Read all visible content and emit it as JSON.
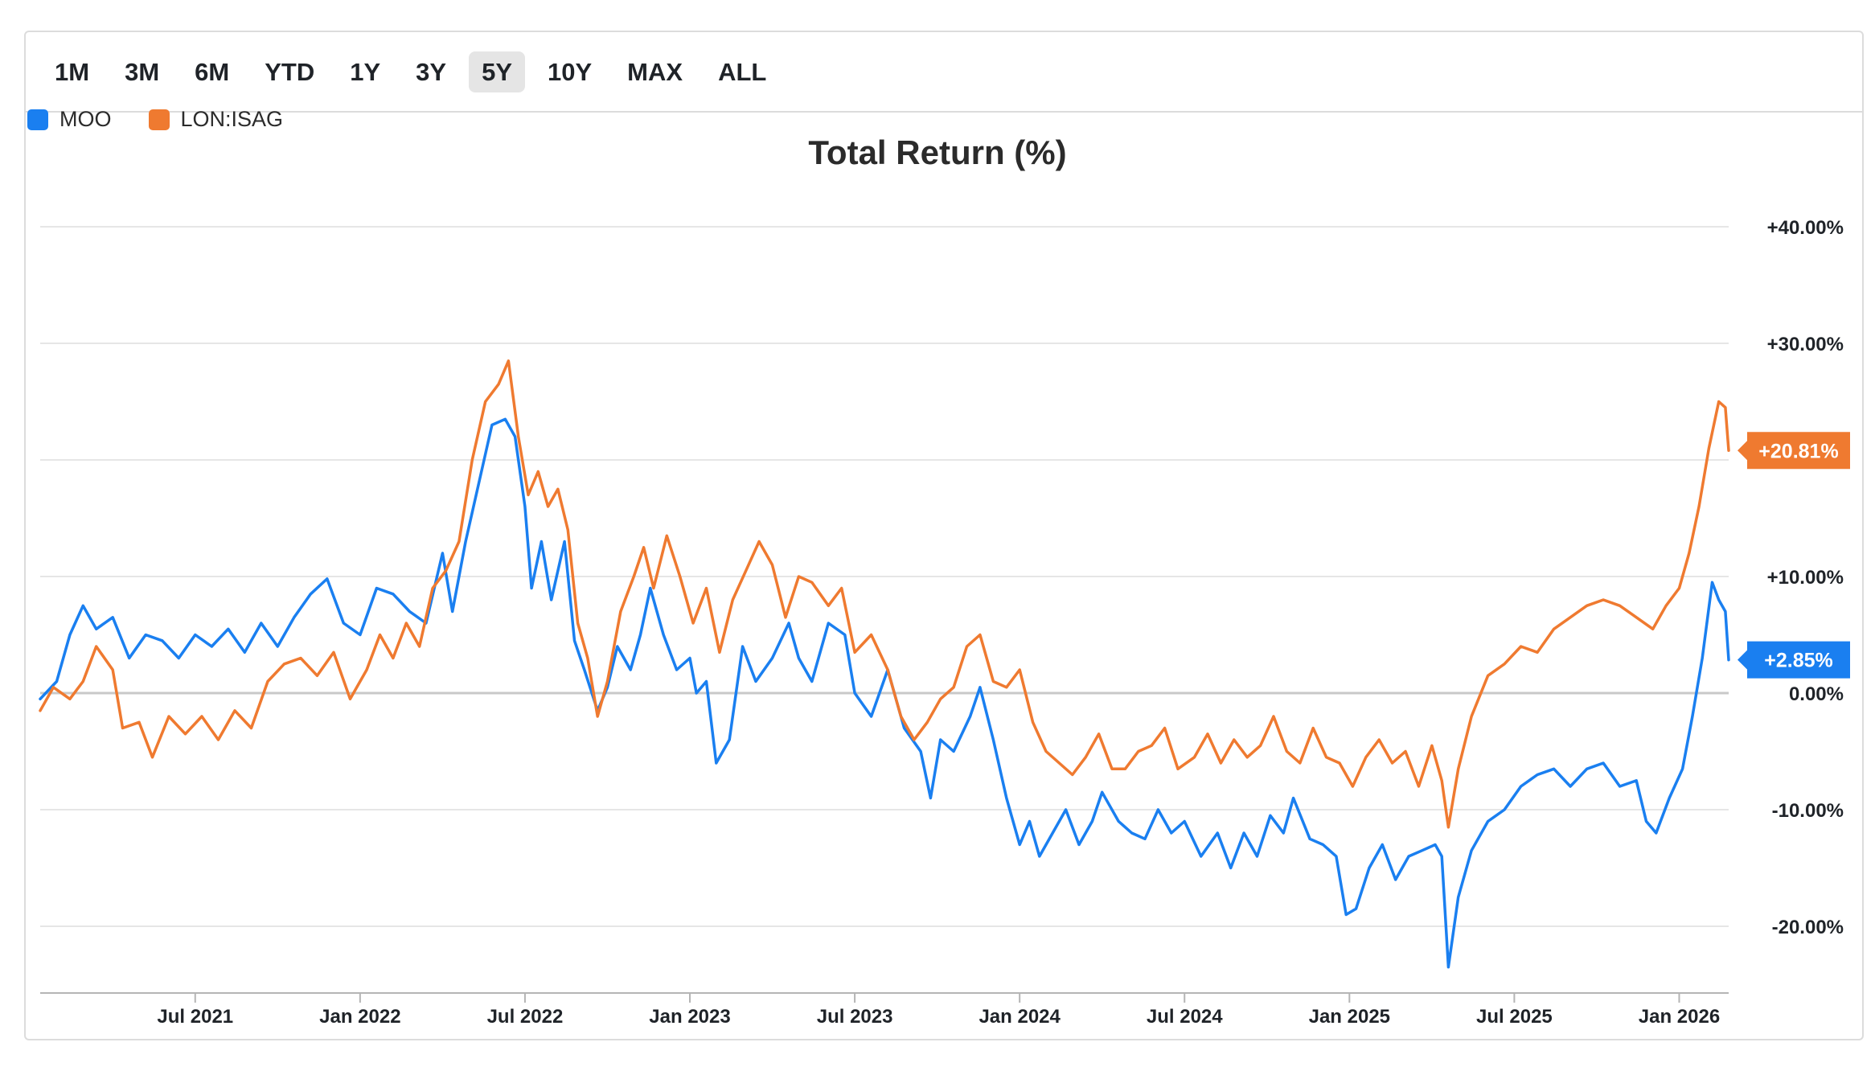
{
  "toolbar": {
    "ranges": [
      "1M",
      "3M",
      "6M",
      "YTD",
      "1Y",
      "3Y",
      "5Y",
      "10Y",
      "MAX",
      "ALL"
    ],
    "selected": "5Y"
  },
  "colors": {
    "moo": "#1a7ff0",
    "isag": "#ef7a30",
    "grid": "#e6e6e6",
    "zero": "#c8c8c8"
  },
  "chart_data": {
    "type": "line",
    "title": "Total Return (%)",
    "xlabel": "",
    "ylabel": "",
    "ylim": [
      -25.8,
      40
    ],
    "y_ticks": [
      40,
      30,
      10,
      0,
      -10,
      -20
    ],
    "y_tick_labels": [
      "+40.00%",
      "+30.00%",
      "+10.00%",
      "0.00%",
      "-10.00%",
      "-20.00%"
    ],
    "x_range": [
      2021.03,
      2026.15
    ],
    "x_ticks": [
      2021.5,
      2022.0,
      2022.5,
      2023.0,
      2023.5,
      2024.0,
      2024.5,
      2025.0,
      2025.5,
      2026.0
    ],
    "x_tick_labels": [
      "Jul 2021",
      "Jan 2022",
      "Jul 2022",
      "Jan 2023",
      "Jul 2023",
      "Jan 2024",
      "Jul 2024",
      "Jan 2025",
      "Jul 2025",
      "Jan 2026"
    ],
    "series": [
      {
        "name": "MOO",
        "color": "#1a7ff0",
        "end_label": "+2.85%",
        "points": [
          [
            2021.03,
            -0.5
          ],
          [
            2021.08,
            1.0
          ],
          [
            2021.12,
            5.0
          ],
          [
            2021.16,
            7.5
          ],
          [
            2021.2,
            5.5
          ],
          [
            2021.25,
            6.5
          ],
          [
            2021.3,
            3.0
          ],
          [
            2021.35,
            5.0
          ],
          [
            2021.4,
            4.5
          ],
          [
            2021.45,
            3.0
          ],
          [
            2021.5,
            5.0
          ],
          [
            2021.55,
            4.0
          ],
          [
            2021.6,
            5.5
          ],
          [
            2021.65,
            3.5
          ],
          [
            2021.7,
            6.0
          ],
          [
            2021.75,
            4.0
          ],
          [
            2021.8,
            6.5
          ],
          [
            2021.85,
            8.5
          ],
          [
            2021.9,
            9.8
          ],
          [
            2021.95,
            6.0
          ],
          [
            2022.0,
            5.0
          ],
          [
            2022.05,
            9.0
          ],
          [
            2022.1,
            8.5
          ],
          [
            2022.15,
            7.0
          ],
          [
            2022.2,
            6.0
          ],
          [
            2022.25,
            12.0
          ],
          [
            2022.28,
            7.0
          ],
          [
            2022.32,
            13.0
          ],
          [
            2022.36,
            18.0
          ],
          [
            2022.4,
            23.0
          ],
          [
            2022.44,
            23.5
          ],
          [
            2022.47,
            22.0
          ],
          [
            2022.5,
            16.0
          ],
          [
            2022.52,
            9.0
          ],
          [
            2022.55,
            13.0
          ],
          [
            2022.58,
            8.0
          ],
          [
            2022.62,
            13.0
          ],
          [
            2022.65,
            4.5
          ],
          [
            2022.68,
            2.0
          ],
          [
            2022.72,
            -1.5
          ],
          [
            2022.75,
            0.5
          ],
          [
            2022.78,
            4.0
          ],
          [
            2022.82,
            2.0
          ],
          [
            2022.85,
            5.0
          ],
          [
            2022.88,
            9.0
          ],
          [
            2022.92,
            5.0
          ],
          [
            2022.96,
            2.0
          ],
          [
            2023.0,
            3.0
          ],
          [
            2023.02,
            0.0
          ],
          [
            2023.05,
            1.0
          ],
          [
            2023.08,
            -6.0
          ],
          [
            2023.12,
            -4.0
          ],
          [
            2023.16,
            4.0
          ],
          [
            2023.2,
            1.0
          ],
          [
            2023.25,
            3.0
          ],
          [
            2023.3,
            6.0
          ],
          [
            2023.33,
            3.0
          ],
          [
            2023.37,
            1.0
          ],
          [
            2023.42,
            6.0
          ],
          [
            2023.47,
            5.0
          ],
          [
            2023.5,
            0.0
          ],
          [
            2023.55,
            -2.0
          ],
          [
            2023.6,
            2.0
          ],
          [
            2023.65,
            -3.0
          ],
          [
            2023.7,
            -5.0
          ],
          [
            2023.73,
            -9.0
          ],
          [
            2023.76,
            -4.0
          ],
          [
            2023.8,
            -5.0
          ],
          [
            2023.85,
            -2.0
          ],
          [
            2023.88,
            0.5
          ],
          [
            2023.92,
            -4.0
          ],
          [
            2023.96,
            -9.0
          ],
          [
            2024.0,
            -13.0
          ],
          [
            2024.03,
            -11.0
          ],
          [
            2024.06,
            -14.0
          ],
          [
            2024.1,
            -12.0
          ],
          [
            2024.14,
            -10.0
          ],
          [
            2024.18,
            -13.0
          ],
          [
            2024.22,
            -11.0
          ],
          [
            2024.25,
            -8.5
          ],
          [
            2024.3,
            -11.0
          ],
          [
            2024.34,
            -12.0
          ],
          [
            2024.38,
            -12.5
          ],
          [
            2024.42,
            -10.0
          ],
          [
            2024.46,
            -12.0
          ],
          [
            2024.5,
            -11.0
          ],
          [
            2024.55,
            -14.0
          ],
          [
            2024.6,
            -12.0
          ],
          [
            2024.64,
            -15.0
          ],
          [
            2024.68,
            -12.0
          ],
          [
            2024.72,
            -14.0
          ],
          [
            2024.76,
            -10.5
          ],
          [
            2024.8,
            -12.0
          ],
          [
            2024.83,
            -9.0
          ],
          [
            2024.88,
            -12.5
          ],
          [
            2024.92,
            -13.0
          ],
          [
            2024.96,
            -14.0
          ],
          [
            2024.99,
            -19.0
          ],
          [
            2025.02,
            -18.5
          ],
          [
            2025.06,
            -15.0
          ],
          [
            2025.1,
            -13.0
          ],
          [
            2025.14,
            -16.0
          ],
          [
            2025.18,
            -14.0
          ],
          [
            2025.22,
            -13.5
          ],
          [
            2025.26,
            -13.0
          ],
          [
            2025.28,
            -14.0
          ],
          [
            2025.3,
            -23.5
          ],
          [
            2025.33,
            -17.5
          ],
          [
            2025.37,
            -13.5
          ],
          [
            2025.42,
            -11.0
          ],
          [
            2025.47,
            -10.0
          ],
          [
            2025.52,
            -8.0
          ],
          [
            2025.57,
            -7.0
          ],
          [
            2025.62,
            -6.5
          ],
          [
            2025.67,
            -8.0
          ],
          [
            2025.72,
            -6.5
          ],
          [
            2025.77,
            -6.0
          ],
          [
            2025.82,
            -8.0
          ],
          [
            2025.87,
            -7.5
          ],
          [
            2025.9,
            -11.0
          ],
          [
            2025.93,
            -12.0
          ],
          [
            2025.97,
            -9.0
          ],
          [
            2026.01,
            -6.5
          ],
          [
            2026.04,
            -2.0
          ],
          [
            2026.07,
            3.0
          ],
          [
            2026.1,
            9.5
          ],
          [
            2026.12,
            8.0
          ],
          [
            2026.14,
            7.0
          ],
          [
            2026.15,
            2.85
          ]
        ]
      },
      {
        "name": "LON:ISAG",
        "color": "#ef7a30",
        "end_label": "+20.81%",
        "points": [
          [
            2021.03,
            -1.5
          ],
          [
            2021.07,
            0.5
          ],
          [
            2021.12,
            -0.5
          ],
          [
            2021.16,
            1.0
          ],
          [
            2021.2,
            4.0
          ],
          [
            2021.25,
            2.0
          ],
          [
            2021.28,
            -3.0
          ],
          [
            2021.33,
            -2.5
          ],
          [
            2021.37,
            -5.5
          ],
          [
            2021.42,
            -2.0
          ],
          [
            2021.47,
            -3.5
          ],
          [
            2021.52,
            -2.0
          ],
          [
            2021.57,
            -4.0
          ],
          [
            2021.62,
            -1.5
          ],
          [
            2021.67,
            -3.0
          ],
          [
            2021.72,
            1.0
          ],
          [
            2021.77,
            2.5
          ],
          [
            2021.82,
            3.0
          ],
          [
            2021.87,
            1.5
          ],
          [
            2021.92,
            3.5
          ],
          [
            2021.97,
            -0.5
          ],
          [
            2022.02,
            2.0
          ],
          [
            2022.06,
            5.0
          ],
          [
            2022.1,
            3.0
          ],
          [
            2022.14,
            6.0
          ],
          [
            2022.18,
            4.0
          ],
          [
            2022.22,
            9.0
          ],
          [
            2022.26,
            10.5
          ],
          [
            2022.3,
            13.0
          ],
          [
            2022.34,
            20.0
          ],
          [
            2022.38,
            25.0
          ],
          [
            2022.42,
            26.5
          ],
          [
            2022.45,
            28.5
          ],
          [
            2022.48,
            22.0
          ],
          [
            2022.51,
            17.0
          ],
          [
            2022.54,
            19.0
          ],
          [
            2022.57,
            16.0
          ],
          [
            2022.6,
            17.5
          ],
          [
            2022.63,
            14.0
          ],
          [
            2022.66,
            6.0
          ],
          [
            2022.69,
            3.0
          ],
          [
            2022.72,
            -2.0
          ],
          [
            2022.75,
            1.0
          ],
          [
            2022.79,
            7.0
          ],
          [
            2022.83,
            10.0
          ],
          [
            2022.86,
            12.5
          ],
          [
            2022.89,
            9.0
          ],
          [
            2022.93,
            13.5
          ],
          [
            2022.97,
            10.0
          ],
          [
            2023.01,
            6.0
          ],
          [
            2023.05,
            9.0
          ],
          [
            2023.09,
            3.5
          ],
          [
            2023.13,
            8.0
          ],
          [
            2023.17,
            10.5
          ],
          [
            2023.21,
            13.0
          ],
          [
            2023.25,
            11.0
          ],
          [
            2023.29,
            6.5
          ],
          [
            2023.33,
            10.0
          ],
          [
            2023.37,
            9.5
          ],
          [
            2023.42,
            7.5
          ],
          [
            2023.46,
            9.0
          ],
          [
            2023.5,
            3.5
          ],
          [
            2023.55,
            5.0
          ],
          [
            2023.6,
            2.0
          ],
          [
            2023.64,
            -2.0
          ],
          [
            2023.68,
            -4.0
          ],
          [
            2023.72,
            -2.5
          ],
          [
            2023.76,
            -0.5
          ],
          [
            2023.8,
            0.5
          ],
          [
            2023.84,
            4.0
          ],
          [
            2023.88,
            5.0
          ],
          [
            2023.92,
            1.0
          ],
          [
            2023.96,
            0.5
          ],
          [
            2024.0,
            2.0
          ],
          [
            2024.04,
            -2.5
          ],
          [
            2024.08,
            -5.0
          ],
          [
            2024.12,
            -6.0
          ],
          [
            2024.16,
            -7.0
          ],
          [
            2024.2,
            -5.5
          ],
          [
            2024.24,
            -3.5
          ],
          [
            2024.28,
            -6.5
          ],
          [
            2024.32,
            -6.5
          ],
          [
            2024.36,
            -5.0
          ],
          [
            2024.4,
            -4.5
          ],
          [
            2024.44,
            -3.0
          ],
          [
            2024.48,
            -6.5
          ],
          [
            2024.53,
            -5.5
          ],
          [
            2024.57,
            -3.5
          ],
          [
            2024.61,
            -6.0
          ],
          [
            2024.65,
            -4.0
          ],
          [
            2024.69,
            -5.5
          ],
          [
            2024.73,
            -4.5
          ],
          [
            2024.77,
            -2.0
          ],
          [
            2024.81,
            -5.0
          ],
          [
            2024.85,
            -6.0
          ],
          [
            2024.89,
            -3.0
          ],
          [
            2024.93,
            -5.5
          ],
          [
            2024.97,
            -6.0
          ],
          [
            2025.01,
            -8.0
          ],
          [
            2025.05,
            -5.5
          ],
          [
            2025.09,
            -4.0
          ],
          [
            2025.13,
            -6.0
          ],
          [
            2025.17,
            -5.0
          ],
          [
            2025.21,
            -8.0
          ],
          [
            2025.25,
            -4.5
          ],
          [
            2025.28,
            -7.5
          ],
          [
            2025.3,
            -11.5
          ],
          [
            2025.33,
            -6.5
          ],
          [
            2025.37,
            -2.0
          ],
          [
            2025.42,
            1.5
          ],
          [
            2025.47,
            2.5
          ],
          [
            2025.52,
            4.0
          ],
          [
            2025.57,
            3.5
          ],
          [
            2025.62,
            5.5
          ],
          [
            2025.67,
            6.5
          ],
          [
            2025.72,
            7.5
          ],
          [
            2025.77,
            8.0
          ],
          [
            2025.82,
            7.5
          ],
          [
            2025.87,
            6.5
          ],
          [
            2025.92,
            5.5
          ],
          [
            2025.96,
            7.5
          ],
          [
            2026.0,
            9.0
          ],
          [
            2026.03,
            12.0
          ],
          [
            2026.06,
            16.0
          ],
          [
            2026.09,
            21.0
          ],
          [
            2026.12,
            25.0
          ],
          [
            2026.14,
            24.5
          ],
          [
            2026.15,
            20.81
          ]
        ]
      }
    ]
  }
}
